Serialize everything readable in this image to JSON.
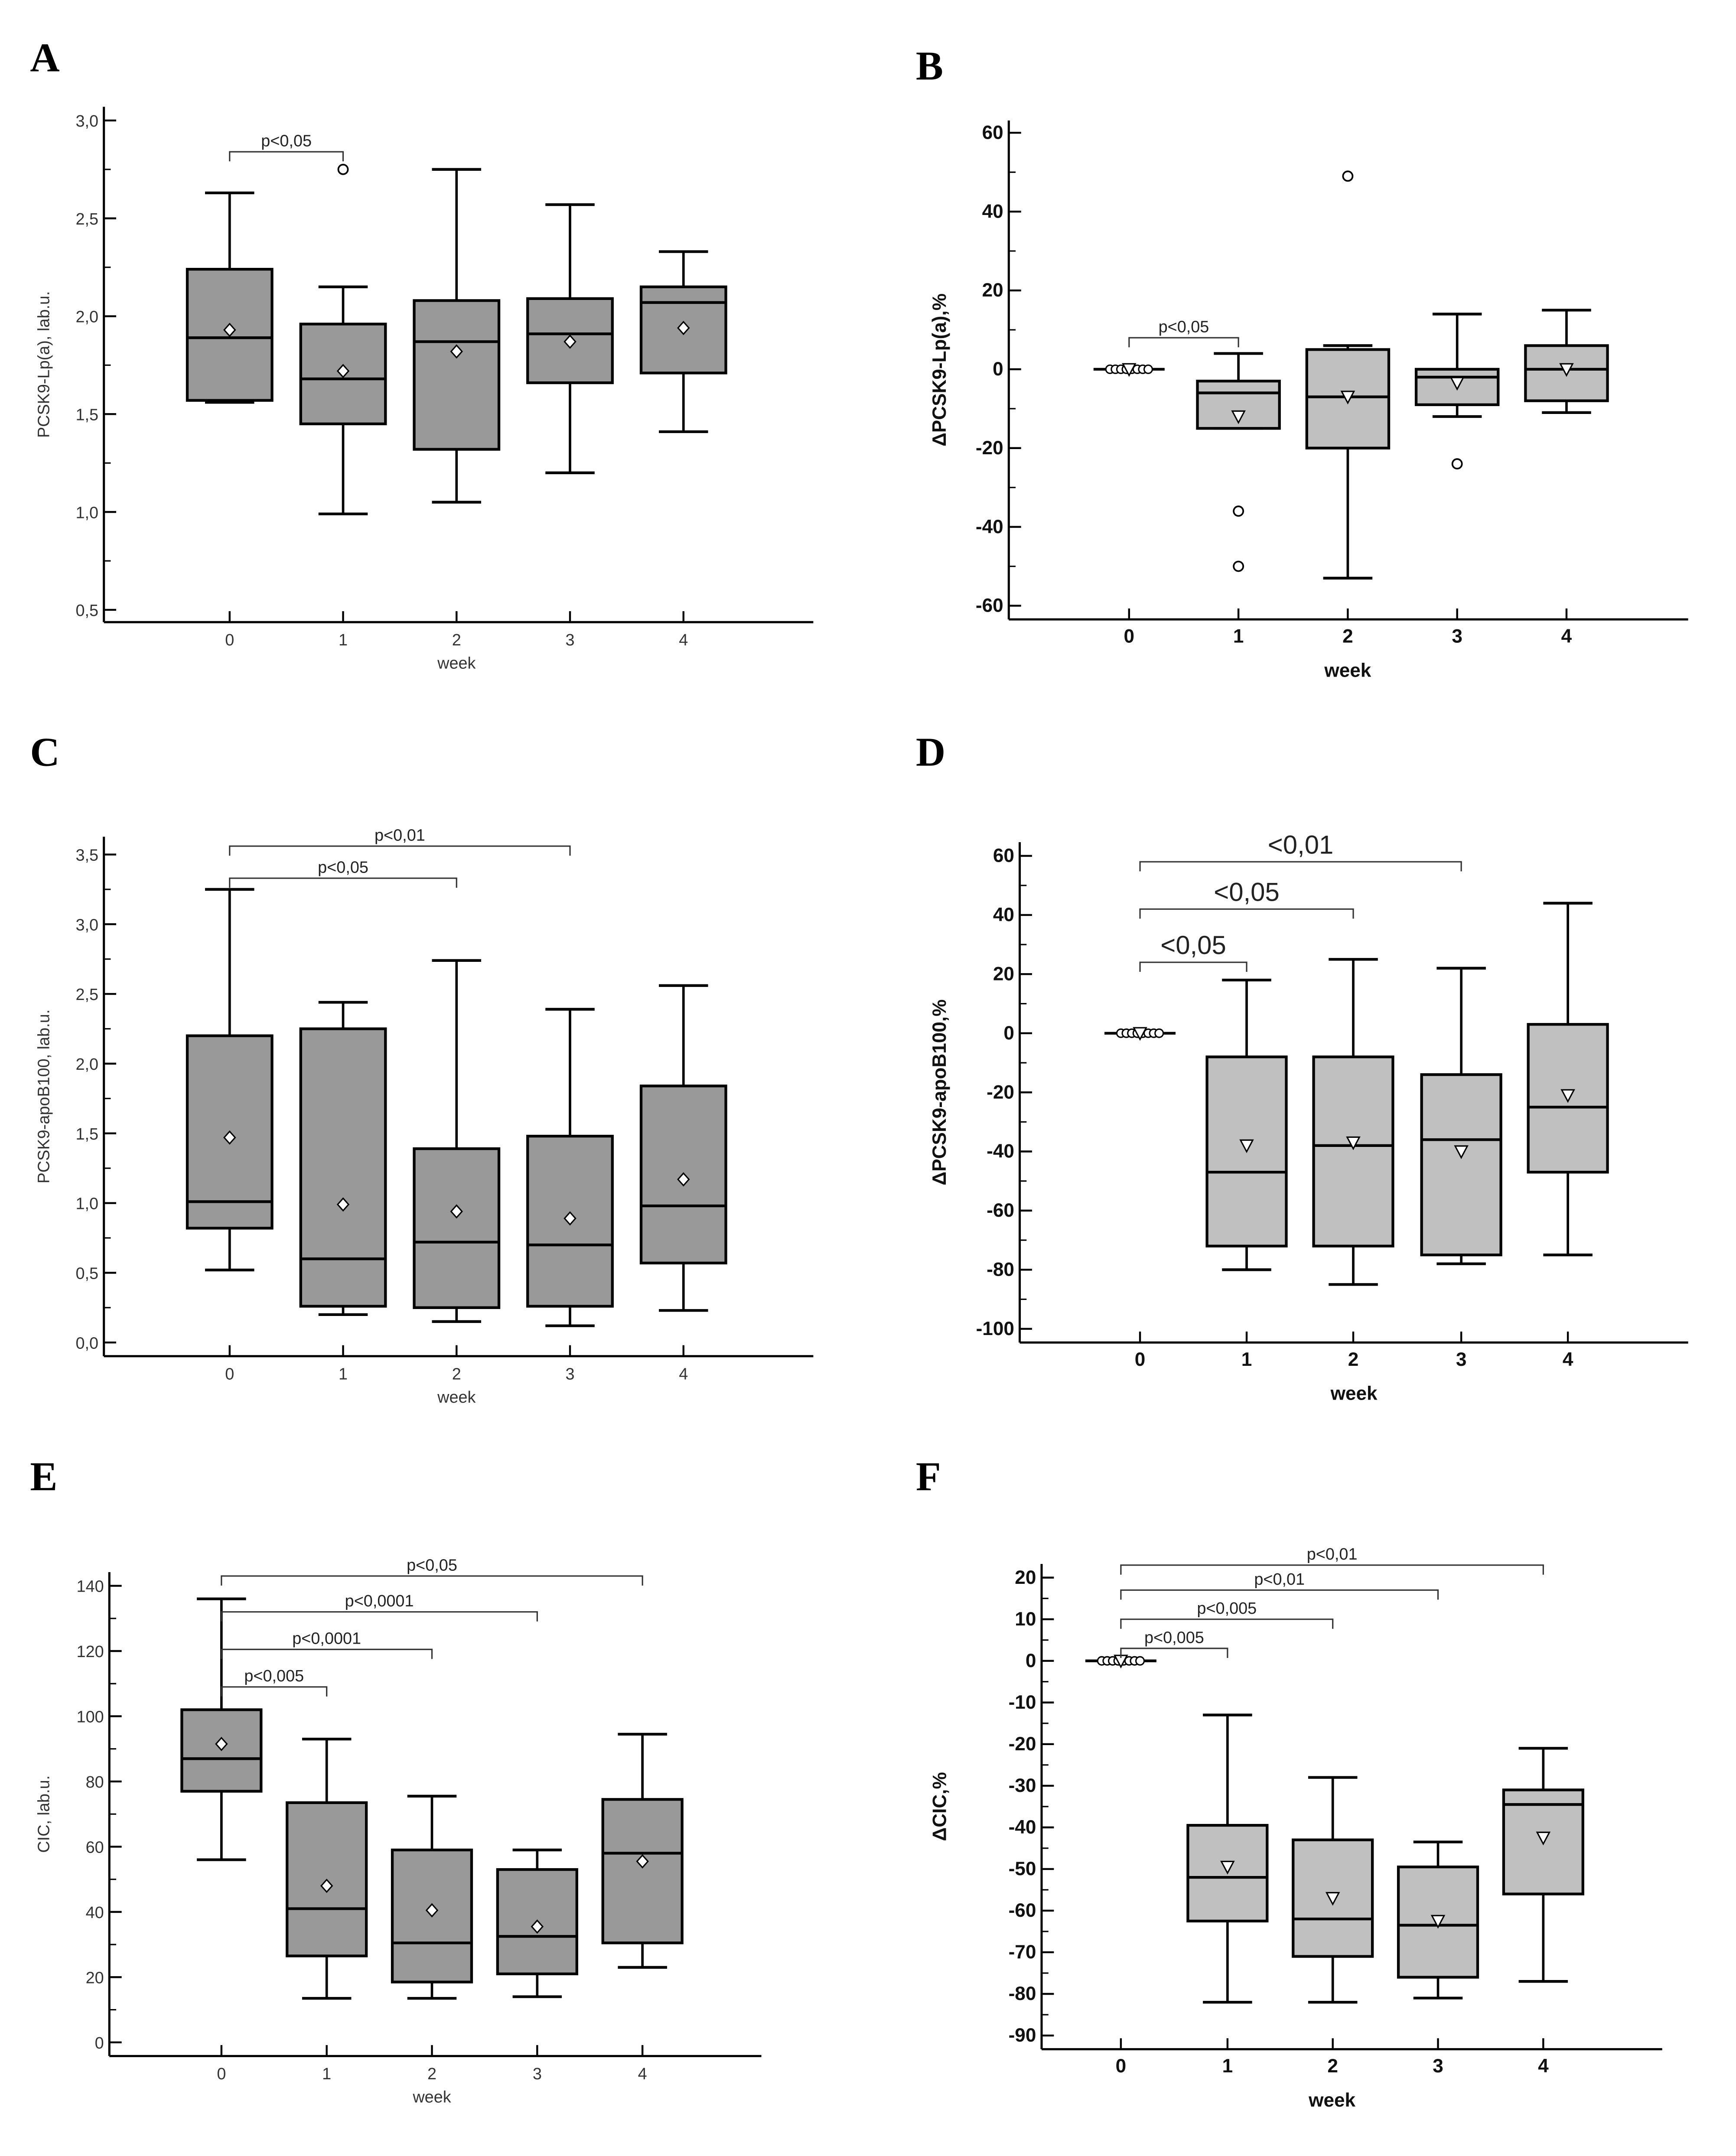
{
  "chart_data": [
    {
      "type": "box",
      "panel": "A",
      "xlabel": "week",
      "ylabel": "PCSK9-Lp(a), lab.u.",
      "categories": [
        "0",
        "1",
        "2",
        "3",
        "4"
      ],
      "ylim": [
        0.5,
        3.0
      ],
      "yticks": [
        0.5,
        1.0,
        1.5,
        2.0,
        2.5,
        3.0
      ],
      "ytick_labels": [
        "0,5",
        "1,0",
        "1,5",
        "2,0",
        "2,5",
        "3,0"
      ],
      "yminor": 0.25,
      "fill": "#999999",
      "mean_marker": "diamond",
      "boxes": [
        {
          "whisker_low": 1.56,
          "q1": 1.57,
          "median": 1.89,
          "q3": 2.24,
          "whisker_high": 2.63,
          "mean": 1.93,
          "outliers": []
        },
        {
          "whisker_low": 0.99,
          "q1": 1.45,
          "median": 1.68,
          "q3": 1.96,
          "whisker_high": 2.15,
          "mean": 1.72,
          "outliers": [
            2.75
          ]
        },
        {
          "whisker_low": 1.05,
          "q1": 1.32,
          "median": 1.87,
          "q3": 2.08,
          "whisker_high": 2.75,
          "mean": 1.82,
          "outliers": []
        },
        {
          "whisker_low": 1.2,
          "q1": 1.66,
          "median": 1.91,
          "q3": 2.09,
          "whisker_high": 2.57,
          "mean": 1.87,
          "outliers": []
        },
        {
          "whisker_low": 1.41,
          "q1": 1.71,
          "median": 2.07,
          "q3": 2.15,
          "whisker_high": 2.33,
          "mean": 1.94,
          "outliers": []
        }
      ],
      "annotations": [
        {
          "from": "0",
          "to": "1",
          "level": 2.84,
          "text": "p<0,05"
        }
      ]
    },
    {
      "type": "box",
      "panel": "B",
      "xlabel": "week",
      "ylabel": "ΔPCSK9-Lp(a),%",
      "categories": [
        "0",
        "1",
        "2",
        "3",
        "4"
      ],
      "ylim": [
        -60,
        60
      ],
      "yticks": [
        -60,
        -40,
        -20,
        0,
        20,
        40,
        60
      ],
      "ytick_labels": [
        "-60",
        "-40",
        "-20",
        "0",
        "20",
        "40",
        "60"
      ],
      "yminor": 10,
      "fill": "#c0c0c0",
      "mean_marker": "triangle",
      "boxes": [
        {
          "whisker_low": 0,
          "q1": 0,
          "median": 0,
          "q3": 0,
          "whisker_high": 0,
          "mean": 0,
          "outliers": [],
          "points": [
            0,
            0,
            0,
            0,
            0,
            0,
            0,
            0
          ]
        },
        {
          "whisker_low": -15,
          "q1": -15,
          "median": -6,
          "q3": -3,
          "whisker_high": 4,
          "mean": -12,
          "outliers": [
            -36,
            -50
          ]
        },
        {
          "whisker_low": -53,
          "q1": -20,
          "median": -7,
          "q3": 5,
          "whisker_high": 6,
          "mean": -7,
          "outliers": [
            49
          ]
        },
        {
          "whisker_low": -12,
          "q1": -9,
          "median": -2,
          "q3": 0,
          "whisker_high": 14,
          "mean": -3.5,
          "outliers": [
            -24
          ]
        },
        {
          "whisker_low": -11,
          "q1": -8,
          "median": 0,
          "q3": 6,
          "whisker_high": 15,
          "mean": 0,
          "outliers": []
        }
      ],
      "annotations": [
        {
          "from": "0",
          "to": "1",
          "level": 8,
          "text": "p<0,05"
        }
      ]
    },
    {
      "type": "box",
      "panel": "C",
      "xlabel": "week",
      "ylabel": "PCSK9-apoB100, lab.u.",
      "categories": [
        "0",
        "1",
        "2",
        "3",
        "4"
      ],
      "ylim": [
        0,
        3.5
      ],
      "yticks": [
        0,
        0.5,
        1.0,
        1.5,
        2.0,
        2.5,
        3.0,
        3.5
      ],
      "ytick_labels": [
        "0,0",
        "0,5",
        "1,0",
        "1,5",
        "2,0",
        "2,5",
        "3,0",
        "3,5"
      ],
      "yminor": 0.25,
      "fill": "#999999",
      "mean_marker": "diamond",
      "boxes": [
        {
          "whisker_low": 0.52,
          "q1": 0.82,
          "median": 1.01,
          "q3": 2.2,
          "whisker_high": 3.25,
          "mean": 1.47,
          "outliers": []
        },
        {
          "whisker_low": 0.2,
          "q1": 0.26,
          "median": 0.6,
          "q3": 2.25,
          "whisker_high": 2.44,
          "mean": 0.99,
          "outliers": []
        },
        {
          "whisker_low": 0.15,
          "q1": 0.25,
          "median": 0.72,
          "q3": 1.39,
          "whisker_high": 2.74,
          "mean": 0.94,
          "outliers": []
        },
        {
          "whisker_low": 0.12,
          "q1": 0.26,
          "median": 0.7,
          "q3": 1.48,
          "whisker_high": 2.39,
          "mean": 0.89,
          "outliers": []
        },
        {
          "whisker_low": 0.23,
          "q1": 0.57,
          "median": 0.98,
          "q3": 1.84,
          "whisker_high": 2.56,
          "mean": 1.17,
          "outliers": []
        }
      ],
      "annotations": [
        {
          "from": "0",
          "to": "2",
          "level": 3.33,
          "text": "p<0,05"
        },
        {
          "from": "0",
          "to": "3",
          "level": 3.56,
          "text": "p<0,01"
        }
      ]
    },
    {
      "type": "box",
      "panel": "D",
      "xlabel": "week",
      "ylabel": "ΔPCSK9-apoB100,%",
      "categories": [
        "0",
        "1",
        "2",
        "3",
        "4"
      ],
      "ylim": [
        -100,
        60
      ],
      "yticks": [
        -100,
        -80,
        -60,
        -40,
        -20,
        0,
        20,
        40,
        60
      ],
      "ytick_labels": [
        "-100",
        "-80",
        "-60",
        "-40",
        "-20",
        "0",
        "20",
        "40",
        "60"
      ],
      "yminor": 10,
      "fill": "#c0c0c0",
      "mean_marker": "triangle",
      "boxes": [
        {
          "whisker_low": 0,
          "q1": 0,
          "median": 0,
          "q3": 0,
          "whisker_high": 0,
          "mean": 0,
          "outliers": [],
          "points": [
            0,
            0,
            0,
            0,
            0,
            0,
            0,
            0
          ]
        },
        {
          "whisker_low": -80,
          "q1": -72,
          "median": -47,
          "q3": -8,
          "whisker_high": 18,
          "mean": -38,
          "outliers": []
        },
        {
          "whisker_low": -85,
          "q1": -72,
          "median": -38,
          "q3": -8,
          "whisker_high": 25,
          "mean": -37,
          "outliers": []
        },
        {
          "whisker_low": -78,
          "q1": -75,
          "median": -36,
          "q3": -14,
          "whisker_high": 22,
          "mean": -40,
          "outliers": []
        },
        {
          "whisker_low": -75,
          "q1": -47,
          "median": -25,
          "q3": 3,
          "whisker_high": 44,
          "mean": -21,
          "outliers": []
        }
      ],
      "annotations": [
        {
          "from": "0",
          "to": "1",
          "level": 24,
          "text": "<0,05"
        },
        {
          "from": "0",
          "to": "2",
          "level": 42,
          "text": "<0,05"
        },
        {
          "from": "0",
          "to": "3",
          "level": 58,
          "text": "<0,01"
        }
      ]
    },
    {
      "type": "box",
      "panel": "E",
      "xlabel": "week",
      "ylabel": "CIC, lab.u.",
      "categories": [
        "0",
        "1",
        "2",
        "3",
        "4"
      ],
      "ylim": [
        0,
        140
      ],
      "yticks": [
        0,
        20,
        40,
        60,
        80,
        100,
        120,
        140
      ],
      "ytick_labels": [
        "0",
        "20",
        "40",
        "60",
        "80",
        "100",
        "120",
        "140"
      ],
      "yminor": 10,
      "fill": "#999999",
      "mean_marker": "diamond",
      "boxes": [
        {
          "whisker_low": 56,
          "q1": 77,
          "median": 87,
          "q3": 102,
          "whisker_high": 136,
          "mean": 91.5,
          "outliers": []
        },
        {
          "whisker_low": 13.5,
          "q1": 26.5,
          "median": 41,
          "q3": 73.5,
          "whisker_high": 93,
          "mean": 48,
          "outliers": []
        },
        {
          "whisker_low": 13.5,
          "q1": 18.5,
          "median": 30.5,
          "q3": 59,
          "whisker_high": 75.5,
          "mean": 40.5,
          "outliers": []
        },
        {
          "whisker_low": 14,
          "q1": 21,
          "median": 32.5,
          "q3": 53,
          "whisker_high": 59,
          "mean": 35.5,
          "outliers": []
        },
        {
          "whisker_low": 23,
          "q1": 30.5,
          "median": 58,
          "q3": 74.5,
          "whisker_high": 94.5,
          "mean": 55.5,
          "outliers": []
        }
      ],
      "annotations": [
        {
          "from": "0",
          "to": "1",
          "level": 109,
          "text": "p<0,005"
        },
        {
          "from": "0",
          "to": "2",
          "level": 120.5,
          "text": "p<0,0001"
        },
        {
          "from": "0",
          "to": "3",
          "level": 132,
          "text": "p<0,0001"
        },
        {
          "from": "0",
          "to": "4",
          "level": 143,
          "text": "p<0,05"
        }
      ]
    },
    {
      "type": "box",
      "panel": "F",
      "xlabel": "week",
      "ylabel": "ΔCIC,%",
      "categories": [
        "0",
        "1",
        "2",
        "3",
        "4"
      ],
      "ylim": [
        -90,
        20
      ],
      "yticks": [
        -90,
        -80,
        -70,
        -60,
        -50,
        -40,
        -30,
        -20,
        -10,
        0,
        10,
        20
      ],
      "ytick_labels": [
        "-90",
        "-80",
        "-70",
        "-60",
        "-50",
        "-40",
        "-30",
        "-20",
        "-10",
        "0",
        "10",
        "20"
      ],
      "yminor": 5,
      "fill": "#c0c0c0",
      "mean_marker": "triangle",
      "boxes": [
        {
          "whisker_low": 0,
          "q1": 0,
          "median": 0,
          "q3": 0,
          "whisker_high": 0,
          "mean": 0,
          "outliers": [],
          "points": [
            0,
            0,
            0,
            0,
            0,
            0,
            0,
            0
          ]
        },
        {
          "whisker_low": -82,
          "q1": -62.5,
          "median": -52,
          "q3": -39.5,
          "whisker_high": -13,
          "mean": -49.5,
          "outliers": []
        },
        {
          "whisker_low": -82,
          "q1": -71,
          "median": -62,
          "q3": -43,
          "whisker_high": -28,
          "mean": -57,
          "outliers": []
        },
        {
          "whisker_low": -81,
          "q1": -76,
          "median": -63.5,
          "q3": -49.5,
          "whisker_high": -43.5,
          "mean": -62.5,
          "outliers": []
        },
        {
          "whisker_low": -77,
          "q1": -56,
          "median": -34.5,
          "q3": -31,
          "whisker_high": -21,
          "mean": -42.5,
          "outliers": []
        }
      ],
      "annotations": [
        {
          "from": "0",
          "to": "1",
          "level": 3,
          "text": "p<0,005"
        },
        {
          "from": "0",
          "to": "2",
          "level": 10,
          "text": "p<0,005"
        },
        {
          "from": "0",
          "to": "3",
          "level": 17,
          "text": "p<0,01"
        },
        {
          "from": "0",
          "to": "4",
          "level": 23,
          "text": "p<0,01"
        }
      ]
    }
  ]
}
